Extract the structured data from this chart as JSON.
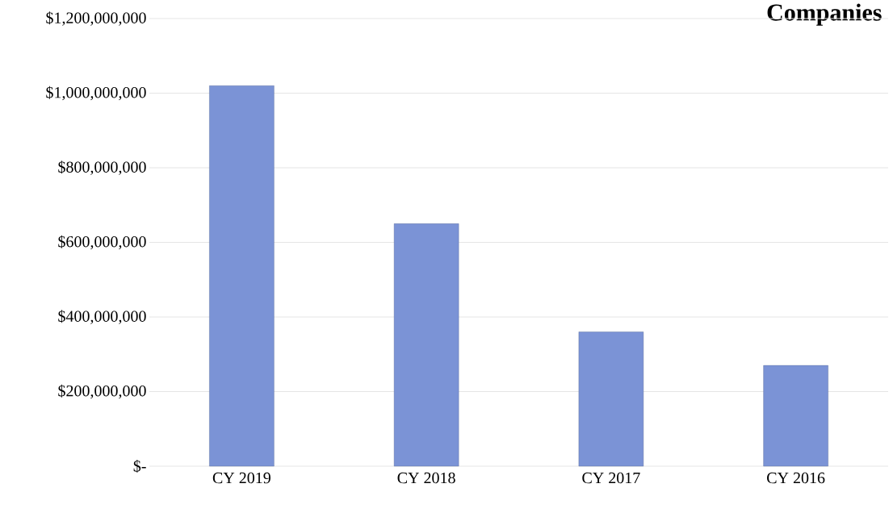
{
  "chart_data": {
    "type": "bar",
    "title": "Companies",
    "categories": [
      "CY 2019",
      "CY 2018",
      "CY 2017",
      "CY 2016"
    ],
    "values": [
      1020000000,
      650000000,
      360000000,
      270000000
    ],
    "color": "#7b93d6",
    "ylim": [
      0,
      1200000000
    ],
    "yticks": [
      {
        "value": 0,
        "label": "$-"
      },
      {
        "value": 200000000,
        "label": "$200,000,000"
      },
      {
        "value": 400000000,
        "label": "$400,000,000"
      },
      {
        "value": 600000000,
        "label": "$600,000,000"
      },
      {
        "value": 800000000,
        "label": "$800,000,000"
      },
      {
        "value": 1000000000,
        "label": "$1,000,000,000"
      },
      {
        "value": 1200000000,
        "label": "$1,200,000,000"
      }
    ],
    "grid": "y"
  }
}
